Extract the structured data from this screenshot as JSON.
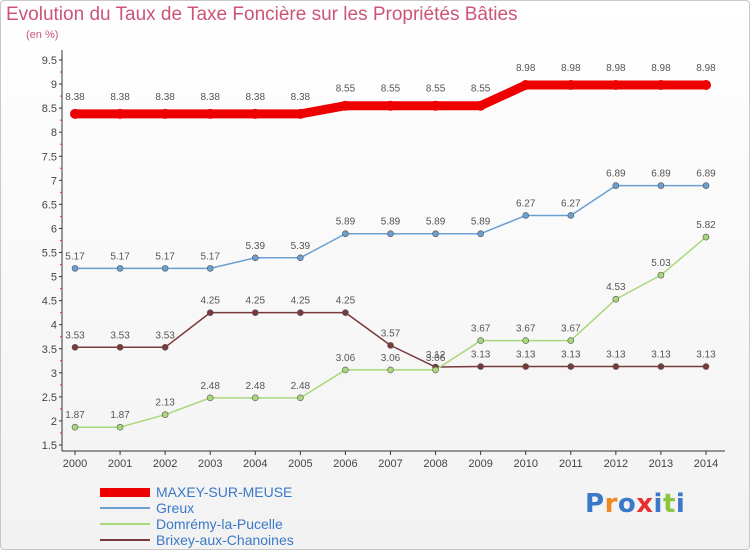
{
  "header": {
    "title": "Evolution du Taux de Taxe Foncière sur les Propriétés Bâties",
    "unit": "(en %)"
  },
  "brand": {
    "logo": "Proxiti",
    "logo_colors": [
      "#3a78c8",
      "#f08a20",
      "#3a78c8",
      "#e83030",
      "#3a78c8",
      "#8cc63f",
      "#3a78c8"
    ]
  },
  "chart_data": {
    "type": "line",
    "x": [
      "2000",
      "2001",
      "2002",
      "2003",
      "2004",
      "2005",
      "2006",
      "2007",
      "2008",
      "2009",
      "2010",
      "2011",
      "2012",
      "2013",
      "2014"
    ],
    "y_ticks": [
      "1.5",
      "2",
      "2.5",
      "3",
      "3.5",
      "4",
      "4.5",
      "5",
      "5.5",
      "6",
      "6.5",
      "7",
      "7.5",
      "8",
      "8.5",
      "9",
      "9.5"
    ],
    "ylim": [
      1.5,
      9.5
    ],
    "grid": false,
    "legend_position": "bottom-left",
    "series": [
      {
        "name": "MAXEY-SUR-MEUSE",
        "color": "#ee0000",
        "width": 9,
        "values": [
          8.38,
          8.38,
          8.38,
          8.38,
          8.38,
          8.38,
          8.55,
          8.55,
          8.55,
          8.55,
          8.98,
          8.98,
          8.98,
          8.98,
          8.98
        ],
        "labels": [
          "8.38",
          "8.38",
          "8.38",
          "8.38",
          "8.38",
          "8.38",
          "8.55",
          "8.55",
          "8.55",
          "8.55",
          "8.98",
          "8.98",
          "8.98",
          "8.98",
          "8.98"
        ]
      },
      {
        "name": "Greux",
        "color": "#6a9fd2",
        "width": 1.5,
        "values": [
          5.17,
          5.17,
          5.17,
          5.17,
          5.39,
          5.39,
          5.89,
          5.89,
          5.89,
          5.89,
          6.27,
          6.27,
          6.89,
          6.89,
          6.89
        ],
        "labels": [
          "5.17",
          "5.17",
          "5.17",
          "5.17",
          "5.39",
          "5.39",
          "5.89",
          "5.89",
          "5.89",
          "5.89",
          "6.27",
          "6.27",
          "6.89",
          "6.89",
          "6.89"
        ]
      },
      {
        "name": "Domrémy-la-Pucelle",
        "color": "#a8d87a",
        "width": 1.5,
        "values": [
          1.87,
          1.87,
          2.13,
          2.48,
          2.48,
          2.48,
          3.06,
          3.06,
          3.06,
          3.67,
          3.67,
          3.67,
          4.53,
          5.03,
          5.82
        ],
        "labels": [
          "1.87",
          "1.87",
          "2.13",
          "2.48",
          "2.48",
          "2.48",
          "3.06",
          "3.06",
          "3.06",
          "3.67",
          "3.67",
          "3.67",
          "4.53",
          "5.03",
          "5.82"
        ]
      },
      {
        "name": "Brixey-aux-Chanoines",
        "color": "#7a3a3a",
        "width": 1.5,
        "values": [
          3.53,
          3.53,
          3.53,
          4.25,
          4.25,
          4.25,
          4.25,
          3.57,
          3.12,
          3.13,
          3.13,
          3.13,
          3.13,
          3.13,
          3.13
        ],
        "labels": [
          "3.53",
          "3.53",
          "3.53",
          "4.25",
          "4.25",
          "4.25",
          "4.25",
          "3.57",
          "3.12",
          "3.13",
          "3.13",
          "3.13",
          "3.13",
          "3.13",
          "3.13"
        ]
      }
    ]
  }
}
